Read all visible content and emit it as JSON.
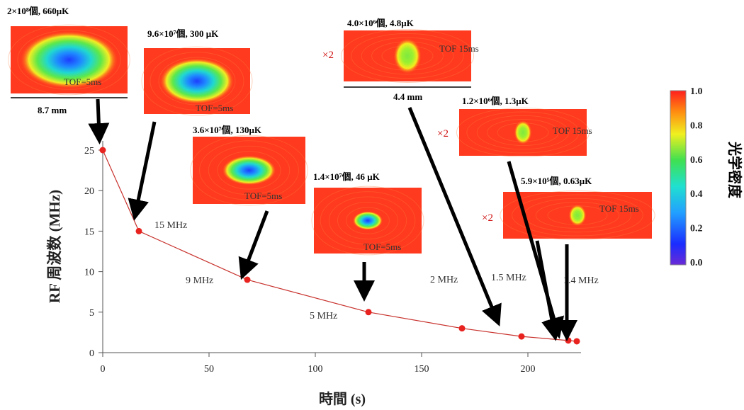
{
  "chart_data": {
    "type": "line",
    "xlabel": "時間 (s)",
    "ylabel": "RF 周波数 (MHz)",
    "xlim": [
      0,
      225
    ],
    "ylim": [
      0,
      26
    ],
    "x_ticks": [
      0,
      50,
      100,
      150,
      200
    ],
    "y_ticks": [
      0,
      5,
      10,
      15,
      20,
      25
    ],
    "grid": false,
    "series": [
      {
        "x": [
          0,
          17,
          68,
          125,
          169,
          197,
          219,
          223
        ],
        "y": [
          25,
          15,
          9,
          5,
          3,
          2,
          1.5,
          1.4
        ]
      }
    ],
    "point_labels": [
      "15 MHz",
      "9 MHz",
      "5 MHz",
      "2 MHz",
      "1.5 MHz",
      "1.4 MHz"
    ],
    "line_color": "#c8322d",
    "marker_color": "#e8231f",
    "colorbar": {
      "label": "光学密度",
      "ticks": [
        "1.0",
        "0.8",
        "0.6",
        "0.4",
        "0.2",
        "0.0"
      ],
      "range": [
        0,
        1
      ]
    }
  },
  "images": [
    {
      "caption": "2×10⁸個, 660μK",
      "tof": "TOF=5ms",
      "scale": "8.7 mm",
      "cloud_size": 0.85,
      "colormap": "blue-core-wide"
    },
    {
      "caption": "9.6×10⁷個, 300 μK",
      "tof": "TOF=5ms",
      "cloud_size": 0.7
    },
    {
      "caption": "3.6×10⁷個, 130μK",
      "tof": "TOF=5ms",
      "cloud_size": 0.5
    },
    {
      "caption": "1.4×10⁷個, 46 μK",
      "tof": "TOF=5ms",
      "cloud_size": 0.3
    },
    {
      "caption": "4.0×10⁶個, 4.8μK",
      "tof": "TOF 15ms",
      "magnification": "×2",
      "scale": "4.4 mm",
      "cloud_size": 0.22
    },
    {
      "caption": "1.2×10⁶個, 1.3μK",
      "tof": "TOF 15ms",
      "magnification": "×2",
      "cloud_size": 0.14
    },
    {
      "caption": "5.9×10⁵個, 0.63μK",
      "tof": "TOF 15ms",
      "magnification": "×2",
      "cloud_size": 0.12
    }
  ]
}
